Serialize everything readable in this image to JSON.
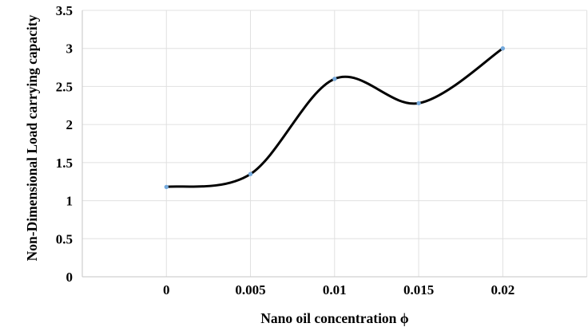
{
  "chart_data": {
    "type": "line",
    "line_style": "smooth",
    "title": "",
    "xlabel": "Nano oil concentration ϕ",
    "ylabel": "Non-Dimensional Load carrying capacity",
    "x": [
      0,
      0.005,
      0.01,
      0.015,
      0.02
    ],
    "series": [
      {
        "name": "Non-Dimensional Load carrying capacity",
        "values": [
          1.18,
          1.35,
          2.6,
          2.28,
          3.0
        ]
      }
    ],
    "x_tick_values": [
      0,
      0.005,
      0.01,
      0.015,
      0.02
    ],
    "x_tick_labels": [
      "0",
      "0.005",
      "0.01",
      "0.015",
      "0.02"
    ],
    "y_tick_values": [
      0,
      0.5,
      1,
      1.5,
      2,
      2.5,
      3,
      3.5
    ],
    "y_tick_labels": [
      "0",
      "0.5",
      "1",
      "1.5",
      "2",
      "2.5",
      "3",
      "3.5"
    ],
    "xlim": [
      -0.005,
      0.025
    ],
    "ylim": [
      0,
      3.5
    ],
    "grid": true,
    "legend_position": "none",
    "colors": {
      "line": "#000000",
      "marker": "#74A9DC",
      "gridline": "#E0E0E0",
      "axis_line": "#C6C6C6",
      "text": "#000000",
      "background": "#FFFFFF"
    }
  }
}
